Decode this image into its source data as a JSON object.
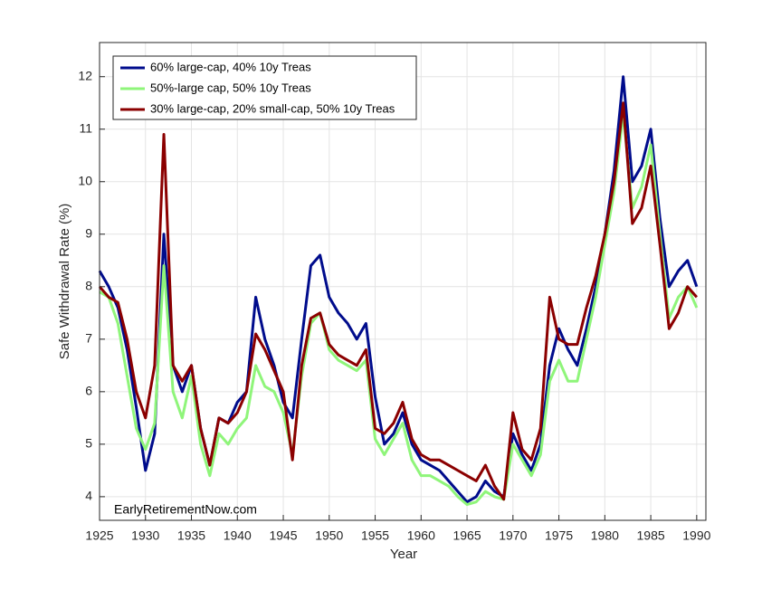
{
  "chart_data": {
    "type": "line",
    "x_label": "Year",
    "y_label": "Safe Withdrawal Rate (%)",
    "annotation": "EarlyRetirementNow.com",
    "x": [
      1925,
      1926,
      1927,
      1928,
      1929,
      1930,
      1931,
      1932,
      1933,
      1934,
      1935,
      1936,
      1937,
      1938,
      1939,
      1940,
      1941,
      1942,
      1943,
      1944,
      1945,
      1946,
      1947,
      1948,
      1949,
      1950,
      1951,
      1952,
      1953,
      1954,
      1955,
      1956,
      1957,
      1958,
      1959,
      1960,
      1961,
      1962,
      1963,
      1964,
      1965,
      1966,
      1967,
      1968,
      1969,
      1970,
      1971,
      1972,
      1973,
      1974,
      1975,
      1976,
      1977,
      1978,
      1979,
      1980,
      1981,
      1982,
      1983,
      1984,
      1985,
      1986,
      1987,
      1988,
      1989,
      1990
    ],
    "series": [
      {
        "name": "60% large-cap, 40% 10y Treas",
        "color": "#000c8c",
        "values": [
          8.3,
          8.0,
          7.6,
          6.8,
          5.7,
          4.5,
          5.2,
          9.0,
          6.5,
          6.0,
          6.5,
          5.3,
          4.6,
          5.5,
          5.4,
          5.8,
          6.0,
          7.8,
          7.0,
          6.5,
          5.8,
          5.5,
          7.0,
          8.4,
          8.6,
          7.8,
          7.5,
          7.3,
          7.0,
          7.3,
          5.9,
          5.0,
          5.2,
          5.6,
          5.0,
          4.7,
          4.6,
          4.5,
          4.3,
          4.1,
          3.9,
          4.0,
          4.3,
          4.1,
          4.0,
          5.2,
          4.8,
          4.5,
          5.0,
          6.5,
          7.2,
          6.8,
          6.5,
          7.2,
          8.0,
          9.0,
          10.2,
          12.0,
          10.0,
          10.3,
          11.0,
          9.3,
          8.0,
          8.3,
          8.5,
          8.0
        ]
      },
      {
        "name": "50%-large cap, 50% 10y Treas",
        "color": "#8ff57a",
        "values": [
          7.9,
          7.8,
          7.3,
          6.3,
          5.3,
          4.9,
          5.4,
          8.4,
          6.0,
          5.5,
          6.3,
          5.0,
          4.4,
          5.2,
          5.0,
          5.3,
          5.5,
          6.5,
          6.1,
          6.0,
          5.6,
          4.8,
          6.3,
          7.3,
          7.5,
          6.8,
          6.6,
          6.5,
          6.4,
          6.6,
          5.1,
          4.8,
          5.1,
          5.4,
          4.7,
          4.4,
          4.4,
          4.3,
          4.2,
          4.0,
          3.85,
          3.9,
          4.1,
          4.0,
          3.95,
          5.0,
          4.7,
          4.4,
          4.8,
          6.2,
          6.6,
          6.2,
          6.2,
          7.0,
          7.8,
          8.8,
          9.8,
          11.3,
          9.5,
          9.9,
          10.7,
          9.0,
          7.4,
          7.8,
          8.0,
          7.6
        ]
      },
      {
        "name": "30% large-cap, 20% small-cap, 50% 10y Treas",
        "color": "#8b0000",
        "values": [
          8.0,
          7.8,
          7.7,
          7.0,
          6.0,
          5.5,
          6.5,
          10.9,
          6.5,
          6.2,
          6.5,
          5.3,
          4.6,
          5.5,
          5.4,
          5.6,
          6.0,
          7.1,
          6.8,
          6.4,
          6.0,
          4.7,
          6.5,
          7.4,
          7.5,
          6.9,
          6.7,
          6.6,
          6.5,
          6.8,
          5.3,
          5.2,
          5.4,
          5.8,
          5.1,
          4.8,
          4.7,
          4.7,
          4.6,
          4.5,
          4.4,
          4.3,
          4.6,
          4.2,
          3.95,
          5.6,
          4.9,
          4.7,
          5.3,
          7.8,
          7.0,
          6.9,
          6.9,
          7.6,
          8.2,
          9.0,
          10.0,
          11.5,
          9.2,
          9.5,
          10.3,
          8.8,
          7.2,
          7.5,
          8.0,
          7.8
        ]
      }
    ],
    "xlim": [
      1925,
      1991
    ],
    "xticks": [
      1925,
      1930,
      1935,
      1940,
      1945,
      1950,
      1955,
      1960,
      1965,
      1970,
      1975,
      1980,
      1985,
      1990
    ],
    "ylim": [
      3.55,
      12.65
    ],
    "yticks": [
      4,
      5,
      6,
      7,
      8,
      9,
      10,
      11,
      12
    ],
    "grid": true,
    "legend": "top-left"
  }
}
